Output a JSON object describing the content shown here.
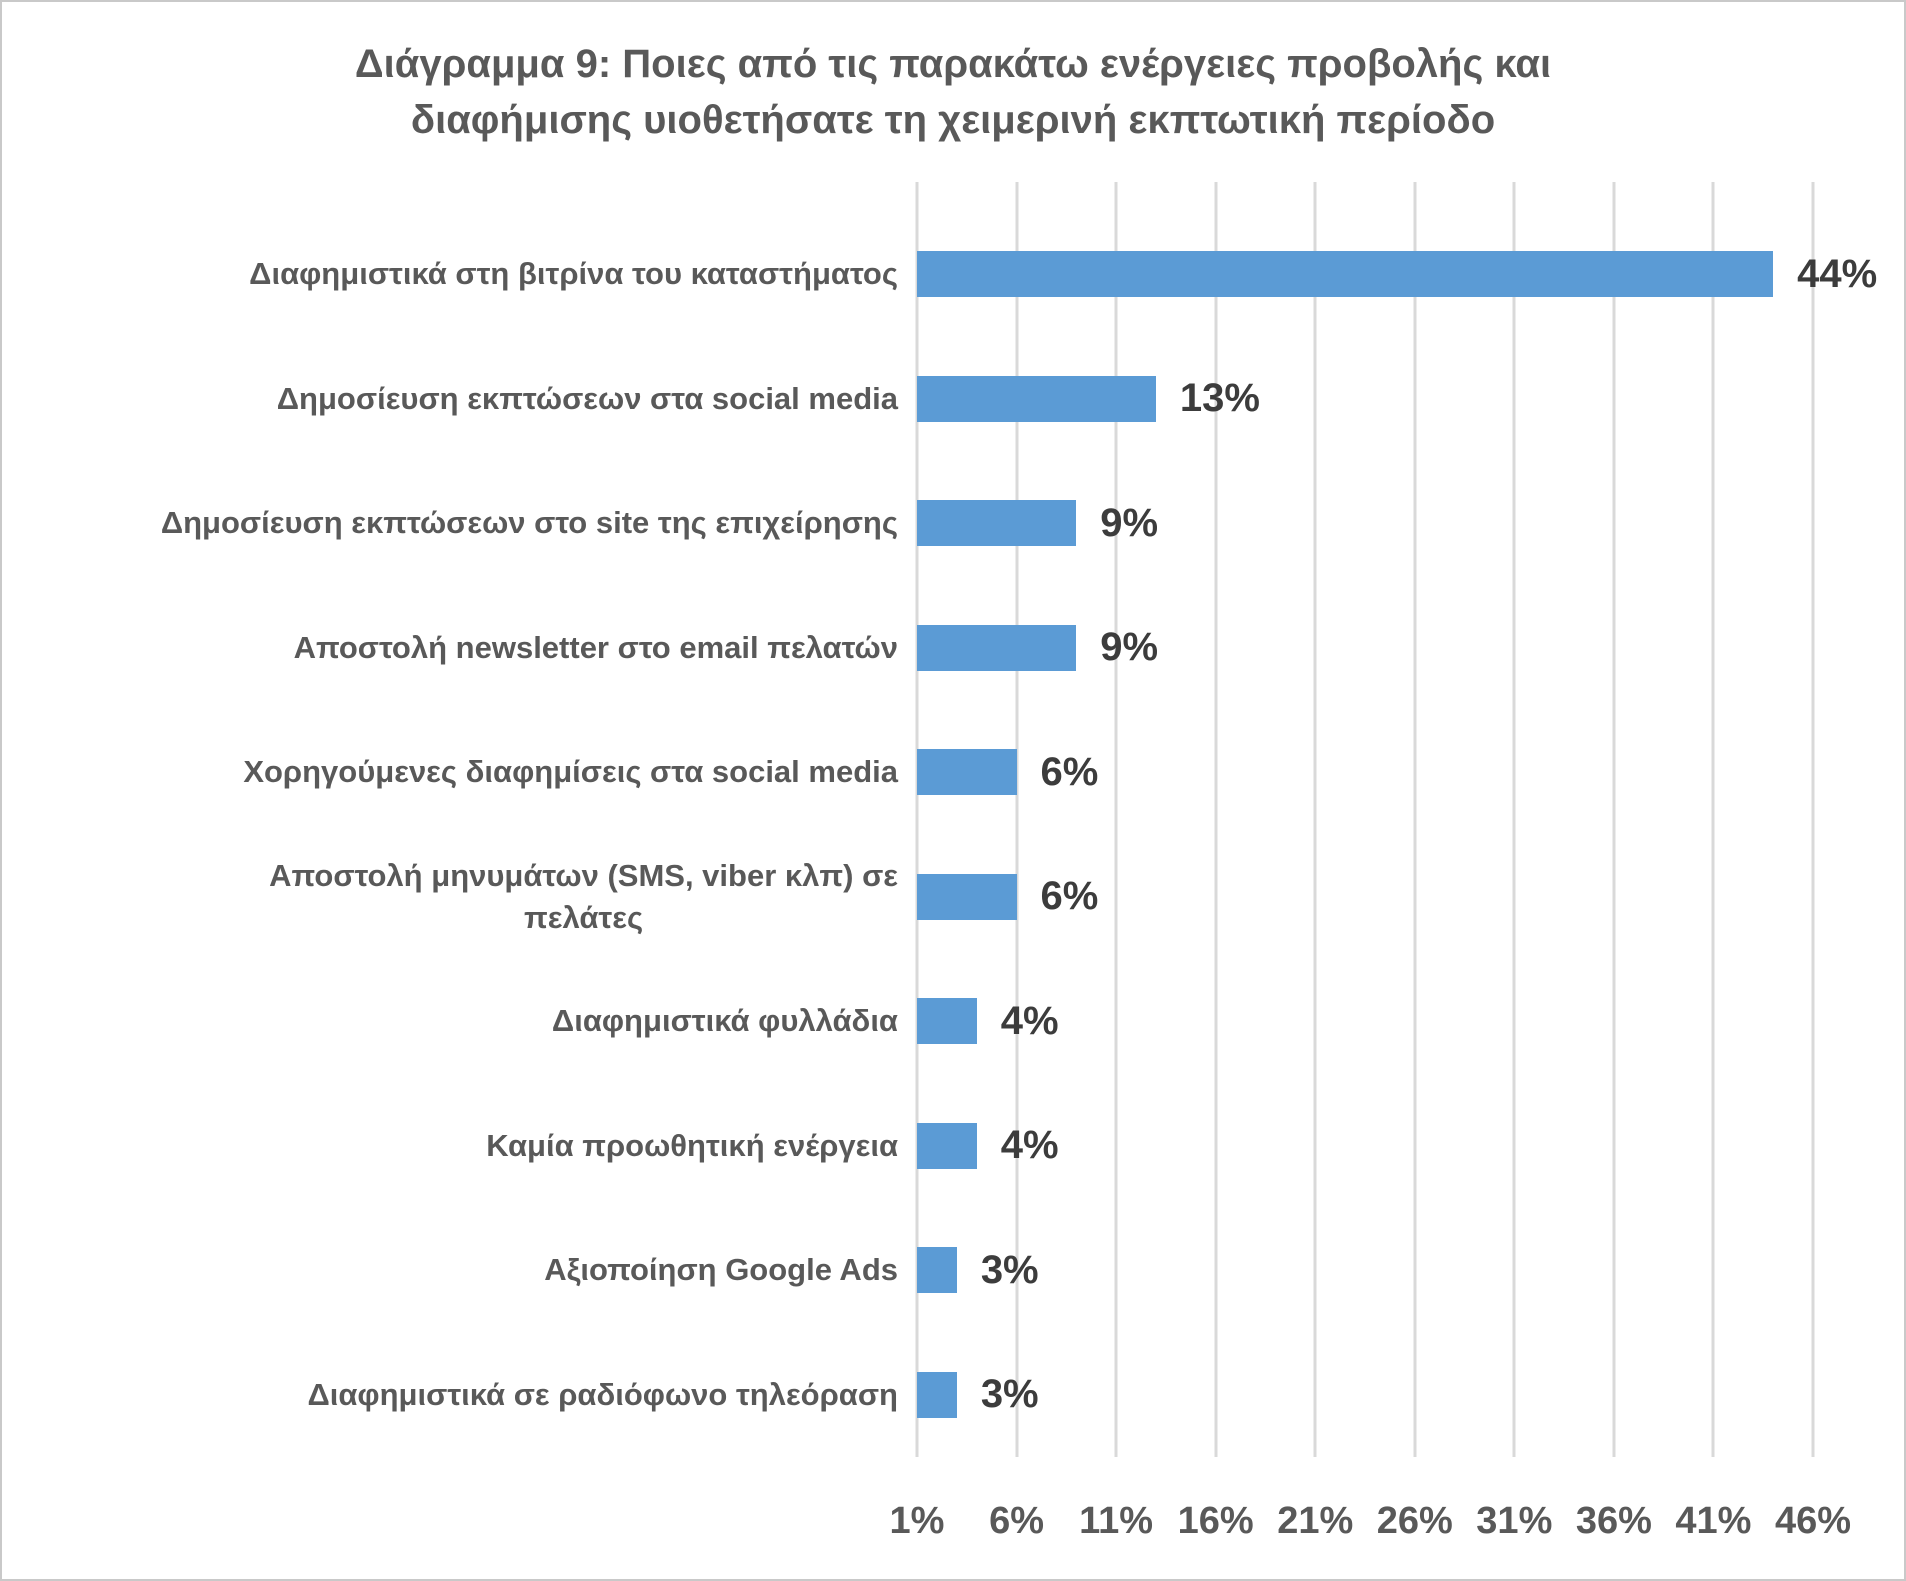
{
  "chart_data": {
    "type": "bar",
    "orientation": "horizontal",
    "title": "Διάγραμμα 9: Ποιες από τις παρακάτω ενέργειες προβολής και\nδιαφήμισης υιοθετήσατε τη χειμερινή εκπτωτική περίοδο",
    "categories": [
      "Διαφημιστικά στη βιτρίνα του καταστήματος",
      "Δημοσίευση εκπτώσεων στα social media",
      "Δημοσίευση εκπτώσεων στο site της επιχείρησης",
      "Αποστολή newsletter στο email πελατών",
      "Χορηγούμενες διαφημίσεις στα social media",
      "Αποστολή μηνυμάτων (SMS, viber κλπ) σε\nπελάτες",
      "Διαφημιστικά φυλλάδια",
      "Καμία προωθητική ενέργεια",
      "Αξιοποίηση Google Ads",
      "Διαφημιστικά σε ραδιόφωνο τηλεόραση"
    ],
    "values": [
      44,
      13,
      9,
      9,
      6,
      6,
      4,
      4,
      3,
      3
    ],
    "value_labels": [
      "44%",
      "13%",
      "9%",
      "9%",
      "6%",
      "6%",
      "4%",
      "4%",
      "3%",
      "3%"
    ],
    "x_ticks": [
      "1%",
      "6%",
      "11%",
      "16%",
      "21%",
      "26%",
      "31%",
      "36%",
      "41%",
      "46%"
    ],
    "x_tick_values": [
      1,
      6,
      11,
      16,
      21,
      26,
      31,
      36,
      41,
      46
    ],
    "xlim": [
      1,
      46
    ],
    "grid": true,
    "legend": false,
    "bar_color": "#5b9bd5",
    "gridline_color": "#d9d9d9",
    "title_color": "#595959",
    "category_label_color": "#595959",
    "value_label_color": "#3c3c3c",
    "tick_label_color": "#595959"
  }
}
